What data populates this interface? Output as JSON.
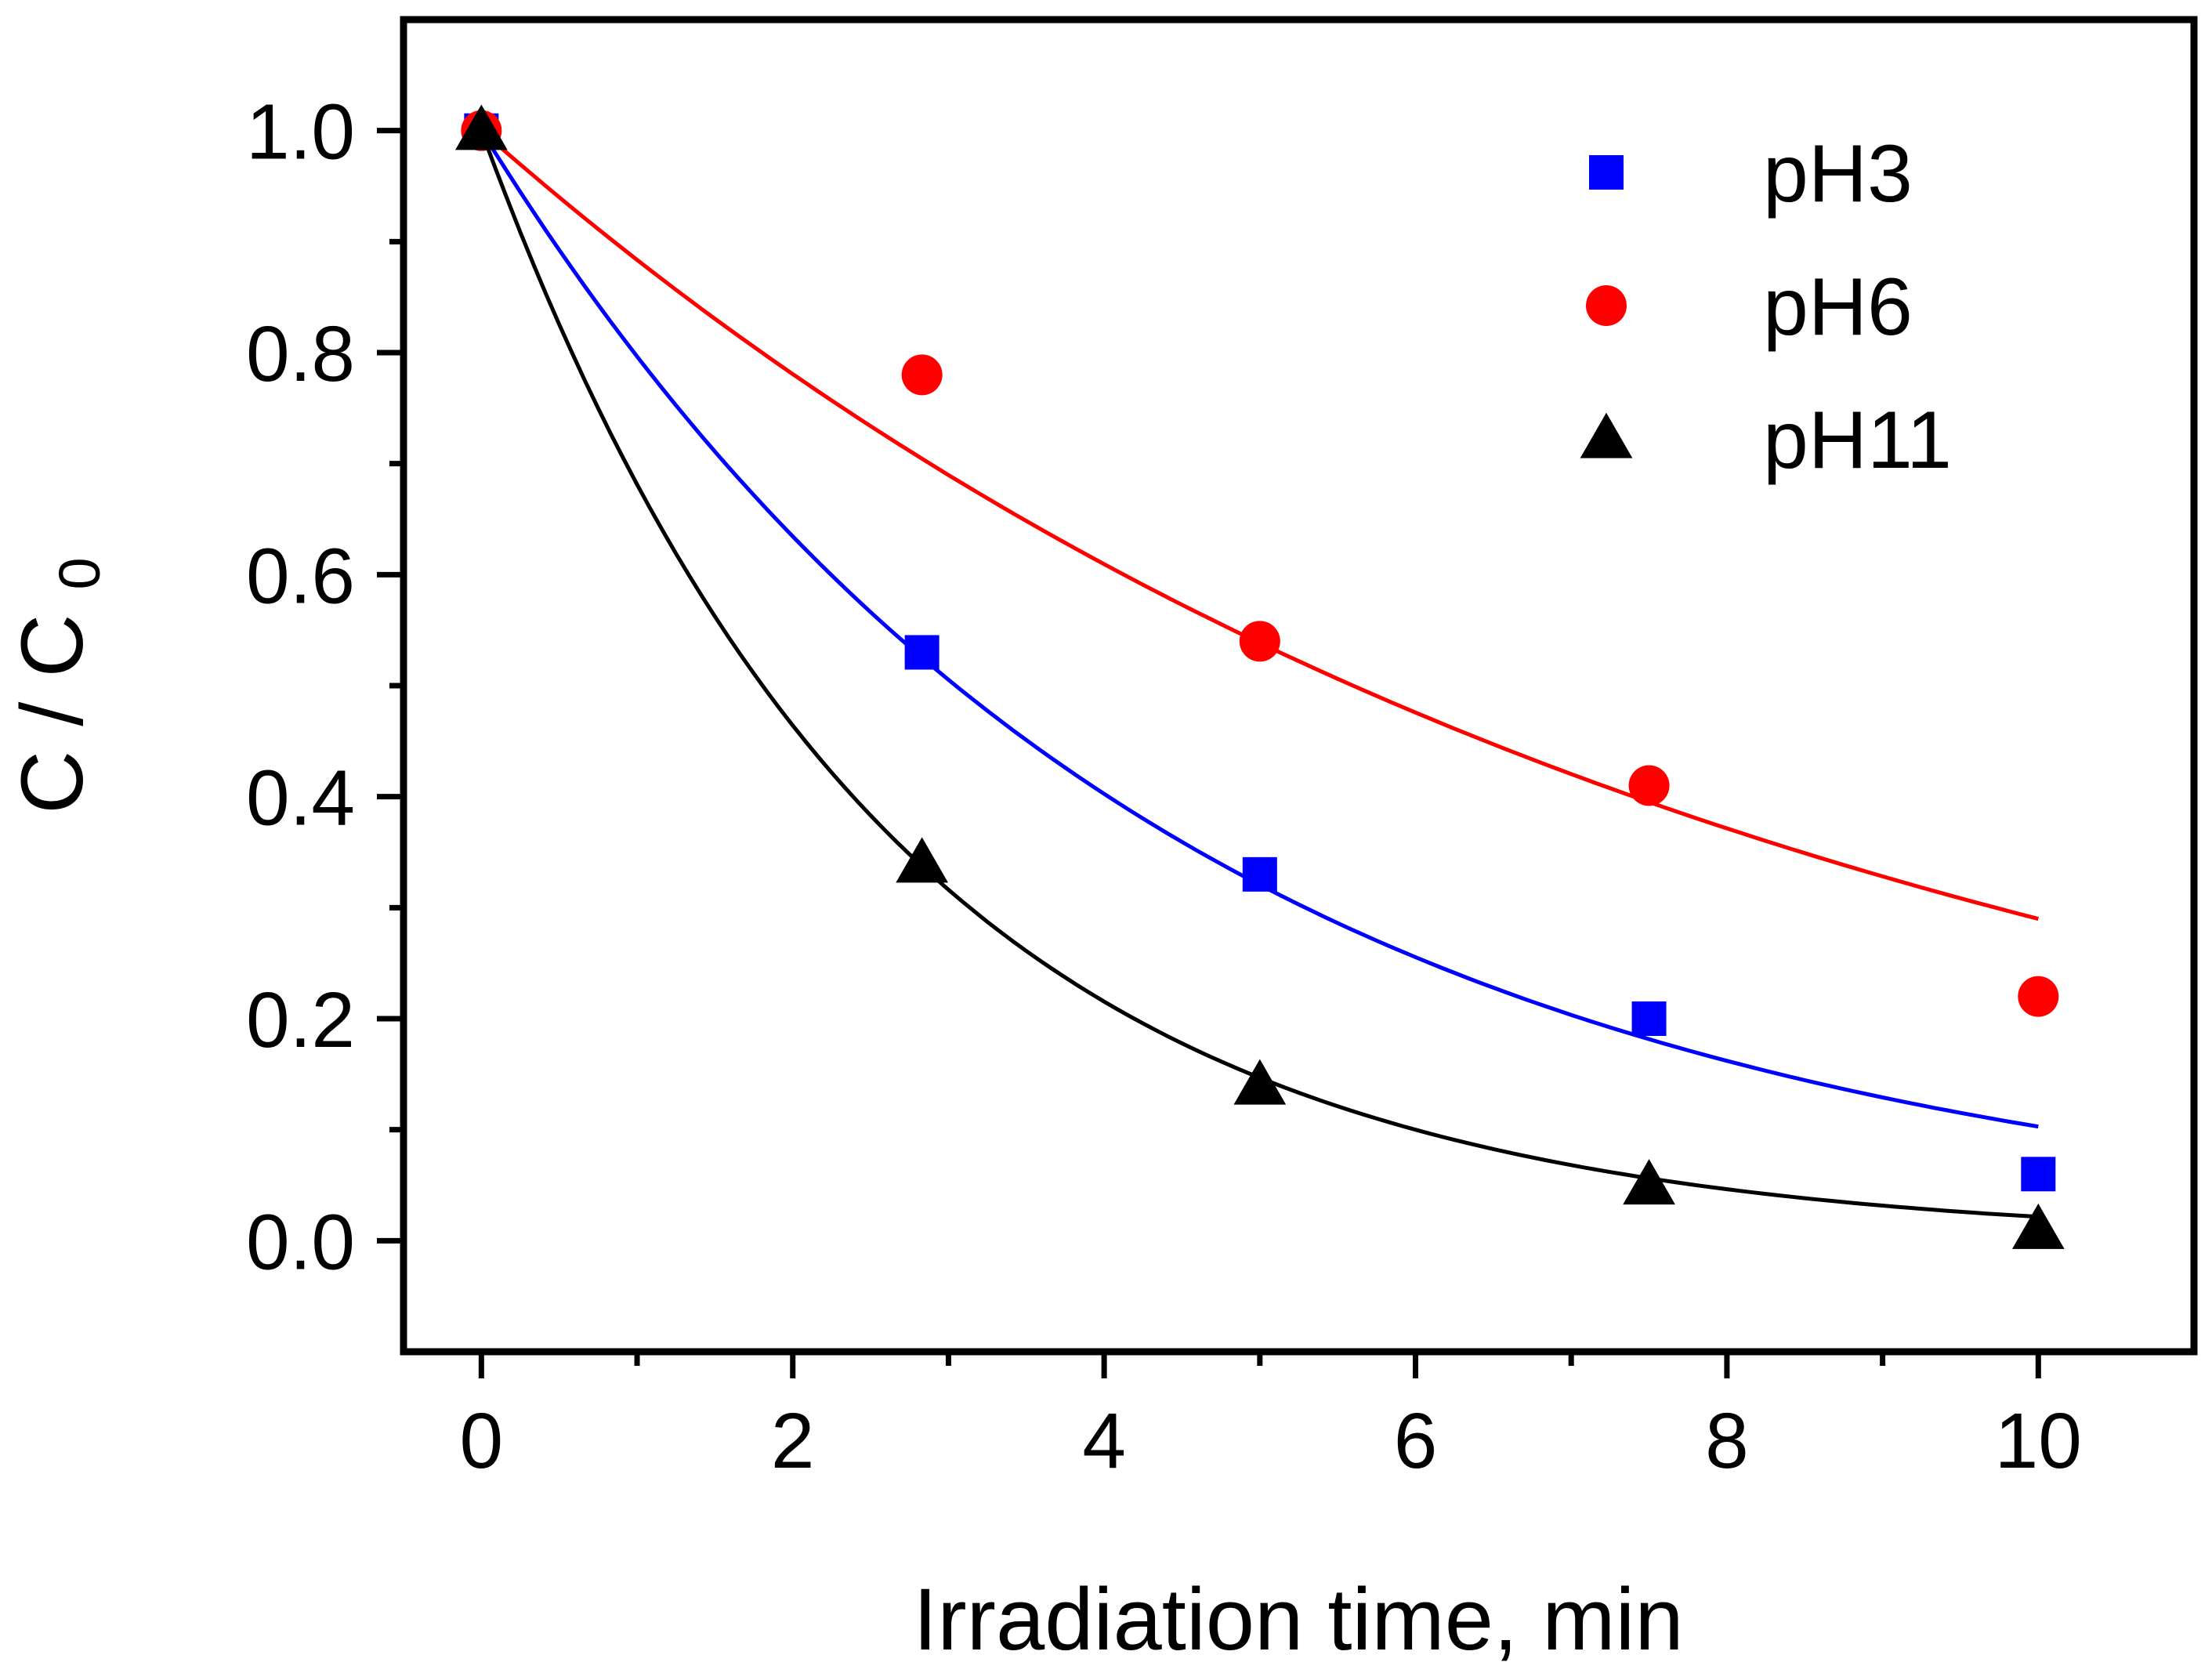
{
  "chart_data": {
    "type": "scatter",
    "title": "",
    "xlabel": "Irradiation time, min",
    "ylabel_main": "C / C",
    "ylabel_sub": "0",
    "xlim": [
      -0.5,
      11
    ],
    "ylim": [
      -0.1,
      1.1
    ],
    "xticks": [
      0,
      2,
      4,
      6,
      8,
      10
    ],
    "xtick_labels": [
      "0",
      "2",
      "4",
      "6",
      "8",
      "10"
    ],
    "yticks": [
      0.0,
      0.2,
      0.4,
      0.6,
      0.8,
      1.0
    ],
    "ytick_labels": [
      "0.0",
      "0.2",
      "0.4",
      "0.6",
      "0.8",
      "1.0"
    ],
    "grid": false,
    "legend_position": "top-right",
    "series": [
      {
        "name": "pH3",
        "marker": "square",
        "color": "#0000ff",
        "x": [
          0,
          2.83,
          5,
          7.5,
          10
        ],
        "y": [
          1.0,
          0.53,
          0.33,
          0.2,
          0.06
        ],
        "fit_k": 0.2275,
        "fit_end": 0.103
      },
      {
        "name": "pH6",
        "marker": "circle",
        "color": "#ff0000",
        "x": [
          0,
          2.83,
          5,
          7.5,
          10
        ],
        "y": [
          1.0,
          0.78,
          0.54,
          0.41,
          0.22
        ],
        "fit_k": 0.1238,
        "fit_end": 0.29
      },
      {
        "name": "pH11",
        "marker": "triangle",
        "color": "#000000",
        "x": [
          0,
          2.83,
          5,
          7.5,
          10
        ],
        "y": [
          1.0,
          0.34,
          0.14,
          0.05,
          0.01
        ],
        "fit_k": 0.3838,
        "fit_end": 0.021
      }
    ]
  }
}
